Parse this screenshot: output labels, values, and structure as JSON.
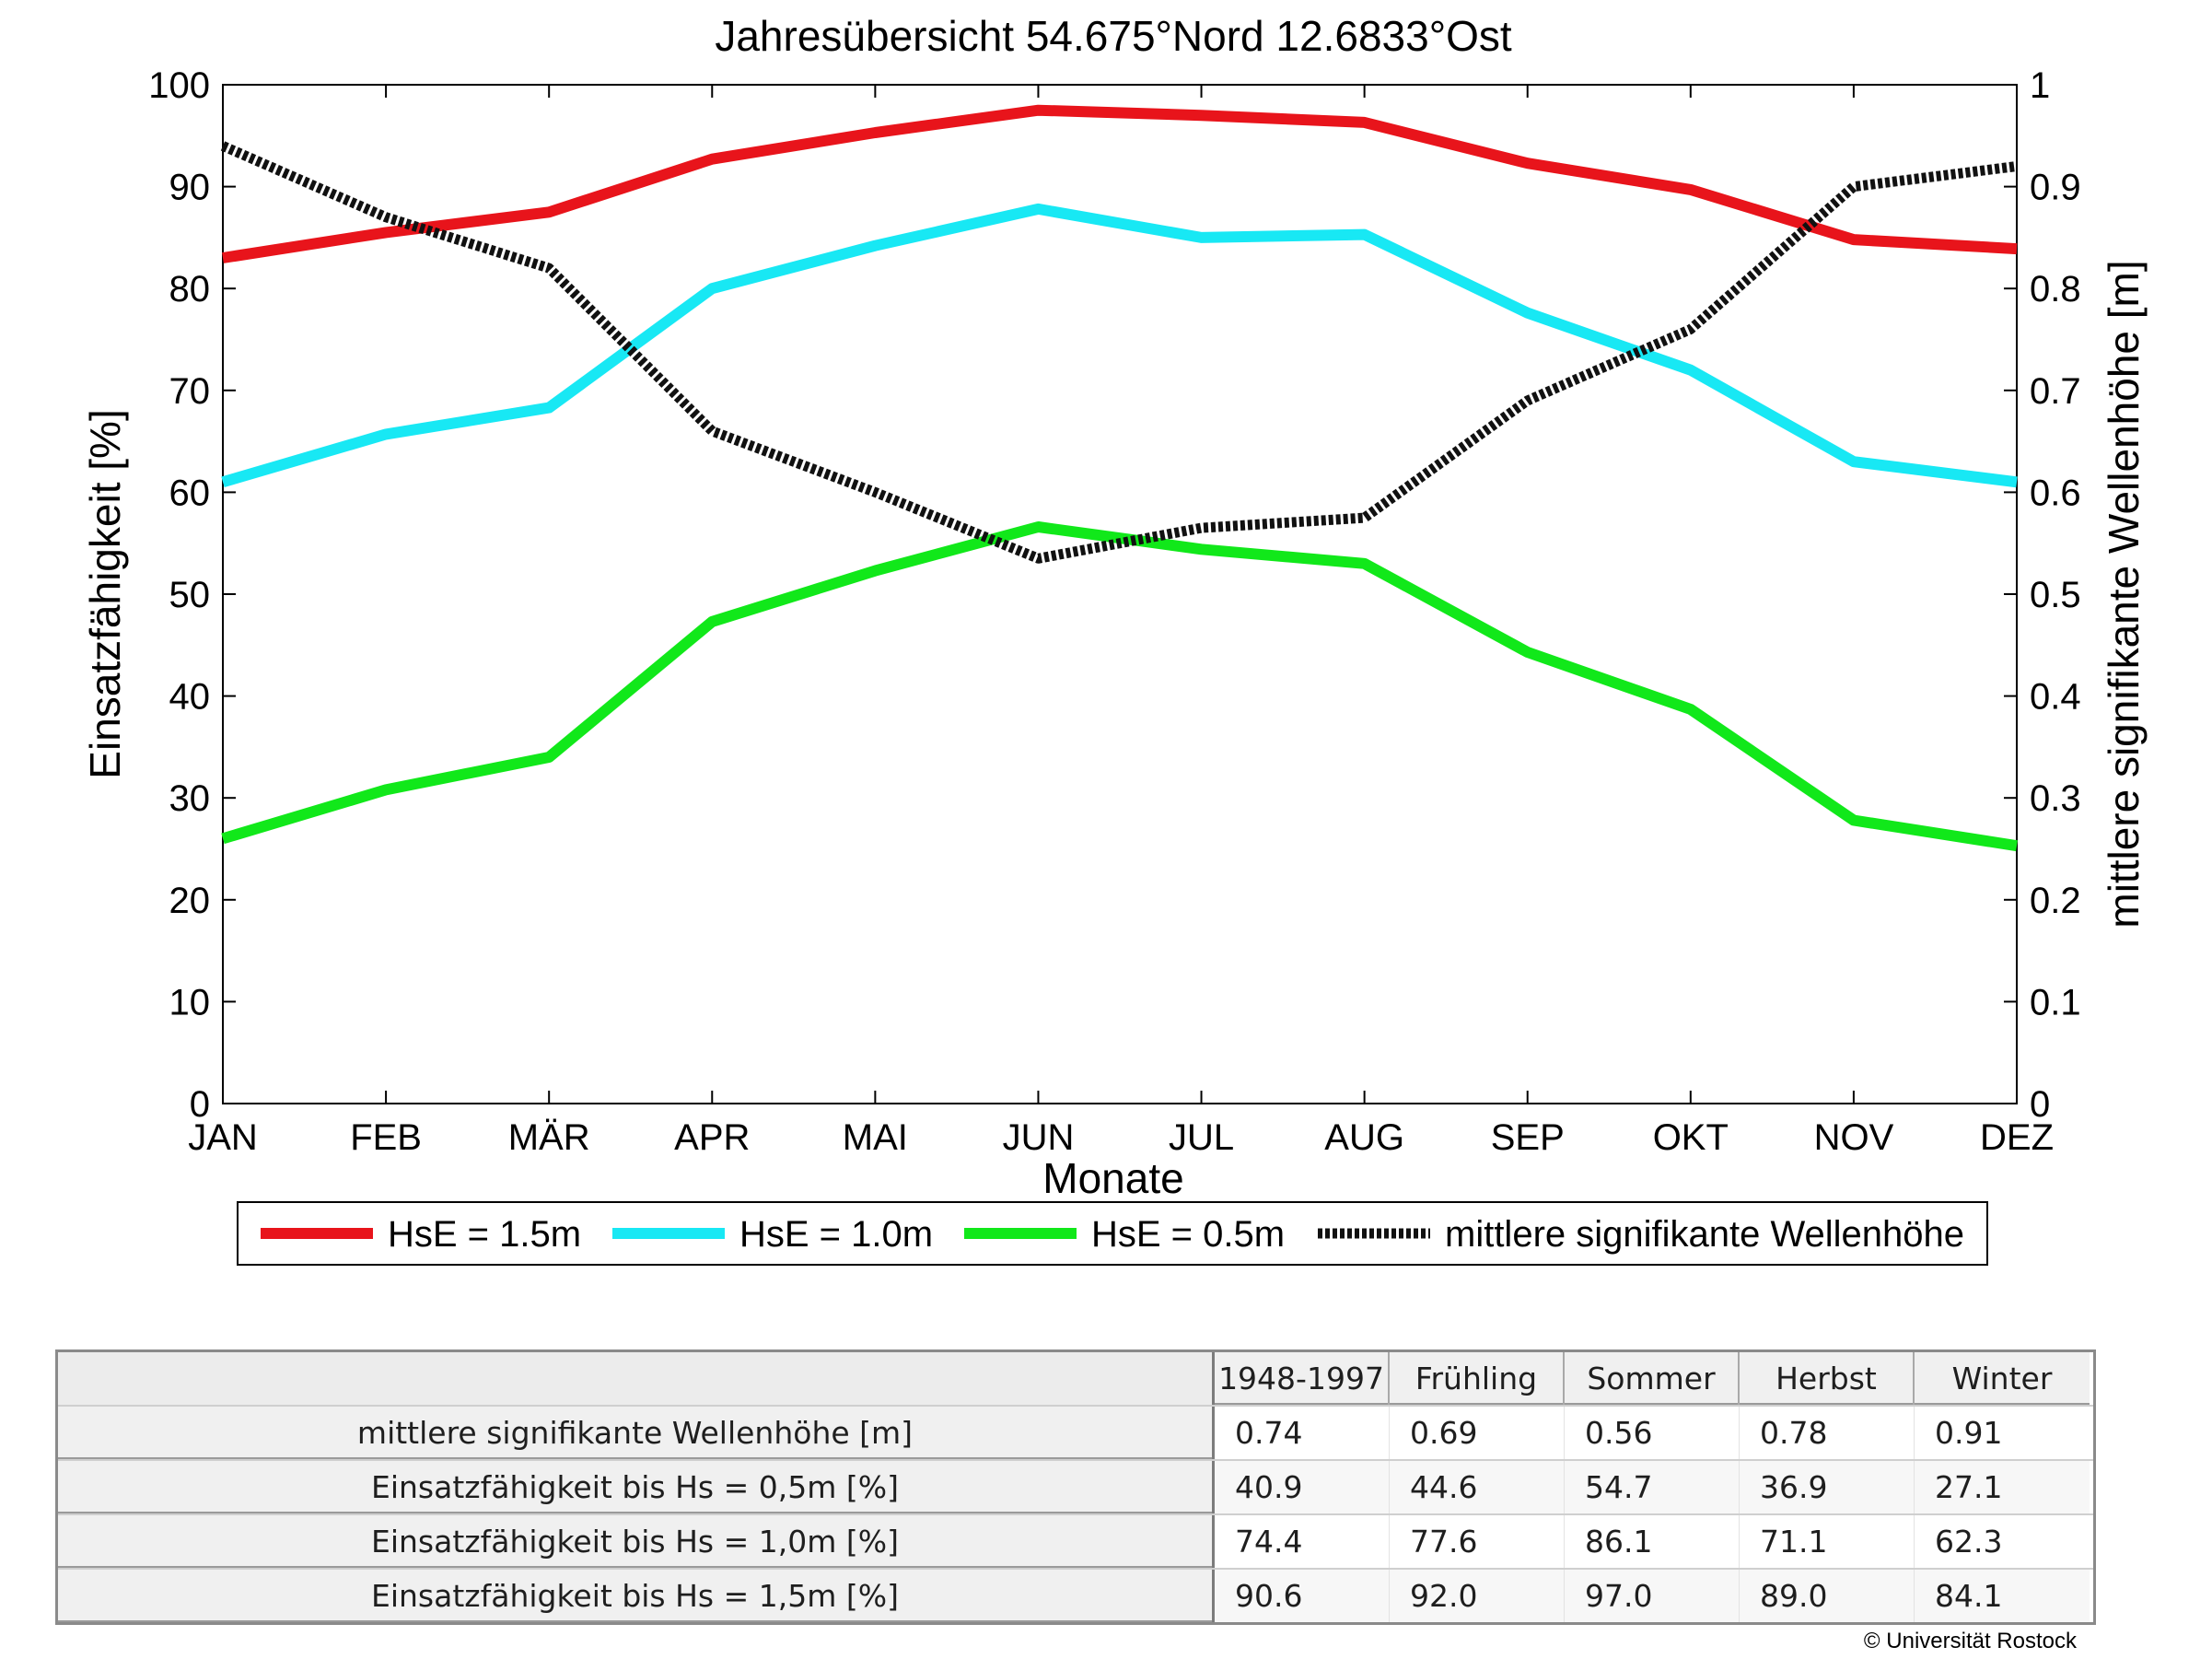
{
  "chart_data": {
    "type": "line",
    "title": "Jahresübersicht  54.675°Nord  12.6833°Ost",
    "xlabel": "Monate",
    "ylabel_left": "Einsatzfähigkeit [%]",
    "ylabel_right": "mittlere signifikante Wellenhöhe [m]",
    "categories": [
      "JAN",
      "FEB",
      "MÄR",
      "APR",
      "MAI",
      "JUN",
      "JUL",
      "AUG",
      "SEP",
      "OKT",
      "NOV",
      "DEZ"
    ],
    "ylim_left": [
      0,
      100
    ],
    "yticks_left": [
      "0",
      "10",
      "20",
      "30",
      "40",
      "50",
      "60",
      "70",
      "80",
      "90",
      "100"
    ],
    "ylim_right": [
      0,
      1
    ],
    "yticks_right": [
      "0",
      "0.1",
      "0.2",
      "0.3",
      "0.4",
      "0.5",
      "0.6",
      "0.7",
      "0.8",
      "0.9",
      "1"
    ],
    "grid": false,
    "legend_position": "bottom",
    "series": [
      {
        "name": "HsE = 1.5m",
        "axis": "left",
        "color": "#e8141b",
        "style": "solid",
        "values": [
          83.0,
          85.5,
          87.5,
          92.7,
          95.3,
          97.5,
          97.0,
          96.3,
          92.3,
          89.7,
          84.8,
          83.9
        ]
      },
      {
        "name": "HsE = 1.0m",
        "axis": "left",
        "color": "#18e8f4",
        "style": "solid",
        "values": [
          61.0,
          65.7,
          68.3,
          80.0,
          84.2,
          87.8,
          85.0,
          85.3,
          77.6,
          72.0,
          63.0,
          61.0
        ]
      },
      {
        "name": "HsE = 0.5m",
        "axis": "left",
        "color": "#11e81a",
        "style": "solid",
        "values": [
          26.0,
          30.8,
          34.0,
          47.3,
          52.3,
          56.6,
          54.4,
          53.0,
          44.3,
          38.7,
          27.8,
          25.3
        ]
      },
      {
        "name": "mittlere signifikante Wellenhöhe",
        "axis": "right",
        "color": "#111111",
        "style": "dotted",
        "values": [
          0.94,
          0.87,
          0.82,
          0.66,
          0.6,
          0.535,
          0.565,
          0.575,
          0.69,
          0.76,
          0.9,
          0.92
        ]
      }
    ]
  },
  "stats_table": {
    "columns": [
      "1948-1997",
      "Frühling",
      "Sommer",
      "Herbst",
      "Winter"
    ],
    "rows": [
      {
        "label": "mittlere signifikante Wellenhöhe [m]",
        "values": [
          "0.74",
          "0.69",
          "0.56",
          "0.78",
          "0.91"
        ]
      },
      {
        "label": "Einsatzfähigkeit bis Hs = 0,5m [%]",
        "values": [
          "40.9",
          "44.6",
          "54.7",
          "36.9",
          "27.1"
        ]
      },
      {
        "label": "Einsatzfähigkeit bis Hs = 1,0m [%]",
        "values": [
          "74.4",
          "77.6",
          "86.1",
          "71.1",
          "62.3"
        ]
      },
      {
        "label": "Einsatzfähigkeit bis Hs = 1,5m [%]",
        "values": [
          "90.6",
          "92.0",
          "97.0",
          "89.0",
          "84.1"
        ]
      }
    ]
  },
  "footer": {
    "copyright": "© Universität Rostock"
  }
}
